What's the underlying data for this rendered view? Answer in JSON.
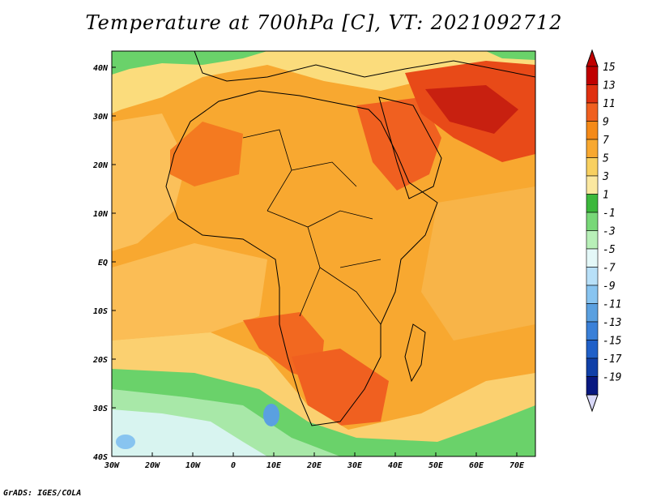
{
  "title": "Temperature at 700hPa [C], VT: 2021092712",
  "credit": "GrADS: IGES/COLA",
  "lat_labels": [
    "40N",
    "30N",
    "20N",
    "10N",
    "EQ",
    "10S",
    "20S",
    "30S",
    "40S"
  ],
  "lon_labels": [
    "30W",
    "20W",
    "10W",
    "0",
    "10E",
    "20E",
    "30E",
    "40E",
    "50E",
    "60E",
    "70E"
  ],
  "colorbar": {
    "labels": [
      "15",
      "13",
      "11",
      "9",
      "7",
      "5",
      "3",
      "1",
      "-1",
      "-3",
      "-5",
      "-7",
      "-9",
      "-11",
      "-13",
      "-15",
      "-17",
      "-19"
    ],
    "colors": [
      "#c00000",
      "#e03010",
      "#f06020",
      "#f58a18",
      "#f8a830",
      "#f8d060",
      "#fbe8a0",
      "#3cb83c",
      "#78d878",
      "#b8f0b8",
      "#e4f8f8",
      "#b8e0f8",
      "#88c4f0",
      "#5aa0e0",
      "#3a80d8",
      "#2060c8",
      "#1040a8",
      "#081880"
    ]
  }
}
